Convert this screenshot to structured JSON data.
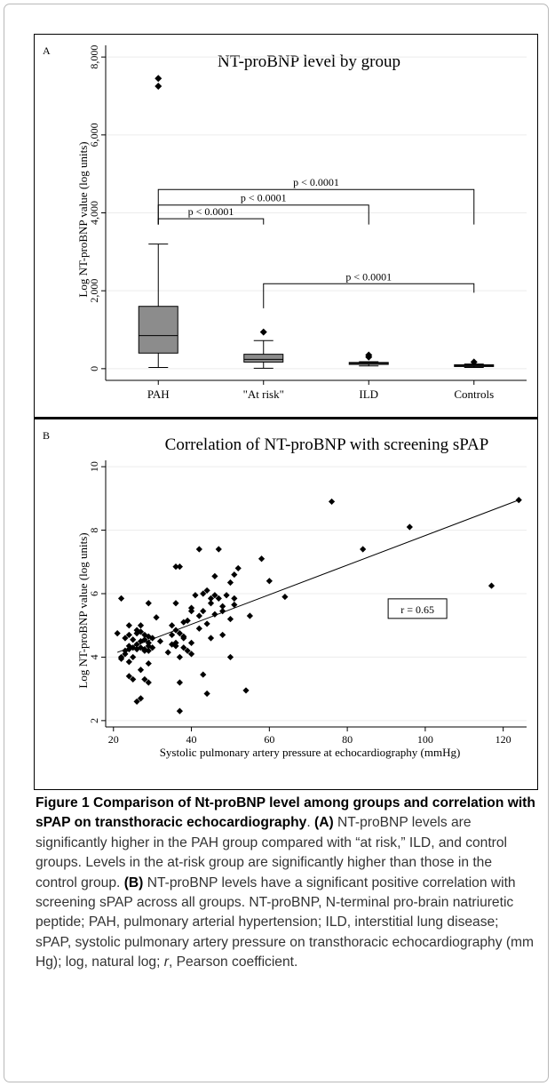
{
  "figure": {
    "caption_title": "Figure 1 Comparison of Nt-proBNP level among groups and correlation with sPAP on transthoracic echocardiography",
    "caption_panel_a_label": "(A)",
    "caption_panel_a_text": "NT-proBNP levels are significantly higher in the PAH group compared with “at risk,” ILD, and control groups. Levels in the at-risk group are significantly higher than those in the control group.",
    "caption_panel_b_label": "(B)",
    "caption_panel_b_text": "NT-proBNP levels have a significant positive correlation with screening sPAP across all groups. NT-proBNP, N-terminal pro-brain natriuretic peptide; PAH, pulmonary arterial hypertension; ILD, interstitial lung disease; sPAP, systolic pulmonary artery pressure on transthoracic echocardiography (mm Hg); log, natural log;",
    "caption_r_italic": "r",
    "caption_tail": ", Pearson coefficient."
  },
  "chart_data": [
    {
      "panel_label": "A",
      "type": "box",
      "title": "NT-proBNP level by group",
      "ylabel": "Log NT-proBNP value (log units)",
      "xlabel": "",
      "ylim": [
        -300,
        8300
      ],
      "yticks": [
        0,
        2000,
        4000,
        6000,
        8000
      ],
      "ytick_labels": [
        "0",
        "2,000",
        "4,000",
        "6,000",
        "8,000"
      ],
      "grid": true,
      "categories": [
        "PAH",
        "\"At risk\"",
        "ILD",
        "Controls"
      ],
      "boxes": [
        {
          "whisker_low": 30,
          "q1": 400,
          "median": 850,
          "q3": 1600,
          "whisker_high": 3200,
          "outliers": [
            7250,
            7450
          ],
          "fill": "#8c8c8c"
        },
        {
          "whisker_low": 10,
          "q1": 170,
          "median": 240,
          "q3": 370,
          "whisker_high": 720,
          "outliers": [
            940
          ],
          "fill": "#8c8c8c"
        },
        {
          "whisker_low": 70,
          "q1": 110,
          "median": 135,
          "q3": 160,
          "whisker_high": 180,
          "outliers": [
            300,
            350
          ],
          "fill": "#8c8c8c"
        },
        {
          "whisker_low": 30,
          "q1": 55,
          "median": 80,
          "q3": 100,
          "whisker_high": 120,
          "outliers": [
            170
          ],
          "fill": "#8c8c8c"
        }
      ],
      "comparisons": [
        {
          "from": 0,
          "to": 1,
          "level": 3850,
          "label": "p < 0.0001"
        },
        {
          "from": 0,
          "to": 2,
          "level": 4200,
          "label": "p < 0.0001"
        },
        {
          "from": 0,
          "to": 3,
          "level": 4600,
          "label": "p < 0.0001"
        },
        {
          "from": 1,
          "to": 3,
          "level": 2180,
          "label": "p < 0.0001"
        }
      ]
    },
    {
      "panel_label": "B",
      "type": "scatter",
      "title": "Correlation of NT-proBNP with screening sPAP",
      "xlabel": "Systolic pulmonary artery pressure at echocardiography (mmHg)",
      "ylabel": "Log NT-proBNP value (log units)",
      "xlim": [
        18,
        126
      ],
      "ylim": [
        1.8,
        10.2
      ],
      "xticks": [
        20,
        40,
        60,
        80,
        100,
        120
      ],
      "yticks": [
        2,
        4,
        6,
        8,
        10
      ],
      "grid": true,
      "annotation": "r = 0.65",
      "fit_line": {
        "x": [
          21,
          124
        ],
        "y": [
          4.15,
          8.95
        ]
      },
      "points": [
        [
          21,
          4.75
        ],
        [
          22,
          5.85
        ],
        [
          22,
          4.0
        ],
        [
          22,
          3.95
        ],
        [
          23,
          4.2
        ],
        [
          23,
          4.6
        ],
        [
          23,
          4.1
        ],
        [
          24,
          4.7
        ],
        [
          24,
          4.35
        ],
        [
          24,
          4.25
        ],
        [
          24,
          3.85
        ],
        [
          24,
          3.4
        ],
        [
          24,
          5.0
        ],
        [
          25,
          3.3
        ],
        [
          25,
          4.55
        ],
        [
          25,
          4.3
        ],
        [
          25,
          4.0
        ],
        [
          26,
          4.75
        ],
        [
          26,
          4.4
        ],
        [
          26,
          4.25
        ],
        [
          26,
          2.6
        ],
        [
          26,
          4.85
        ],
        [
          27,
          4.3
        ],
        [
          27,
          4.5
        ],
        [
          27,
          5.0
        ],
        [
          27,
          4.8
        ],
        [
          27,
          3.6
        ],
        [
          27,
          2.7
        ],
        [
          28,
          4.2
        ],
        [
          28,
          4.55
        ],
        [
          28,
          4.25
        ],
        [
          28,
          3.3
        ],
        [
          28,
          4.7
        ],
        [
          29,
          5.7
        ],
        [
          29,
          4.45
        ],
        [
          29,
          4.35
        ],
        [
          29,
          4.2
        ],
        [
          29,
          3.8
        ],
        [
          29,
          3.2
        ],
        [
          29,
          4.65
        ],
        [
          30,
          4.3
        ],
        [
          30,
          4.6
        ],
        [
          31,
          5.25
        ],
        [
          32,
          4.5
        ],
        [
          34,
          4.15
        ],
        [
          35,
          5.0
        ],
        [
          35,
          4.7
        ],
        [
          35,
          4.4
        ],
        [
          36,
          6.85
        ],
        [
          36,
          5.7
        ],
        [
          36,
          4.85
        ],
        [
          36,
          4.45
        ],
        [
          36,
          4.35
        ],
        [
          37,
          6.85
        ],
        [
          37,
          4.75
        ],
        [
          37,
          4.0
        ],
        [
          37,
          3.2
        ],
        [
          37,
          2.3
        ],
        [
          38,
          5.1
        ],
        [
          38,
          4.65
        ],
        [
          38,
          4.6
        ],
        [
          38,
          4.3
        ],
        [
          39,
          5.15
        ],
        [
          39,
          4.2
        ],
        [
          40,
          5.55
        ],
        [
          40,
          5.45
        ],
        [
          40,
          4.45
        ],
        [
          40,
          4.1
        ],
        [
          41,
          5.95
        ],
        [
          42,
          7.4
        ],
        [
          42,
          5.3
        ],
        [
          42,
          4.9
        ],
        [
          43,
          6.0
        ],
        [
          43,
          5.45
        ],
        [
          43,
          3.45
        ],
        [
          44,
          6.1
        ],
        [
          44,
          5.05
        ],
        [
          44,
          2.85
        ],
        [
          45,
          5.85
        ],
        [
          45,
          5.7
        ],
        [
          45,
          4.6
        ],
        [
          46,
          6.55
        ],
        [
          46,
          5.95
        ],
        [
          46,
          5.35
        ],
        [
          47,
          7.4
        ],
        [
          47,
          5.85
        ],
        [
          48,
          5.6
        ],
        [
          48,
          5.45
        ],
        [
          48,
          4.7
        ],
        [
          49,
          5.95
        ],
        [
          50,
          6.35
        ],
        [
          50,
          5.2
        ],
        [
          50,
          4.0
        ],
        [
          51,
          6.6
        ],
        [
          51,
          5.85
        ],
        [
          51,
          5.65
        ],
        [
          52,
          6.8
        ],
        [
          54,
          2.95
        ],
        [
          55,
          5.3
        ],
        [
          58,
          7.1
        ],
        [
          60,
          6.4
        ],
        [
          64,
          5.9
        ],
        [
          76,
          8.9
        ],
        [
          84,
          7.4
        ],
        [
          96,
          8.1
        ],
        [
          117,
          6.25
        ],
        [
          124,
          8.95
        ]
      ]
    }
  ]
}
